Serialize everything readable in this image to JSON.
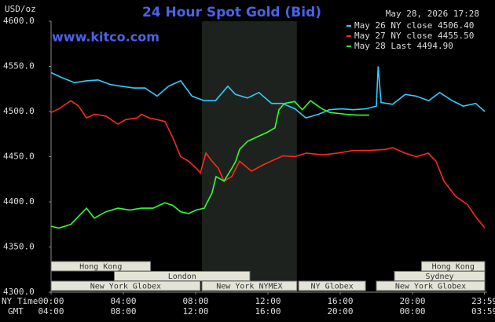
{
  "chart_data": {
    "type": "line",
    "title": "24 Hour Spot Gold (Bid)",
    "y_unit": "USD/oz",
    "timestamp": "May 28, 2026 17:28",
    "site": "www.kitco.com",
    "x_axis_labels": [
      "NY Time",
      "GMT"
    ],
    "xlim": [
      0,
      24
    ],
    "xticks": [
      {
        "value": 0,
        "label": "00:00"
      },
      {
        "value": 4,
        "label": "04:00"
      },
      {
        "value": 8,
        "label": "08:00"
      },
      {
        "value": 12,
        "label": "12:00"
      },
      {
        "value": 16,
        "label": "16:00"
      },
      {
        "value": 20,
        "label": "20:00"
      },
      {
        "value": 23.98,
        "label": "23:59"
      }
    ],
    "gmt_ticks": [
      "04:00",
      "08:00",
      "12:00",
      "16:00",
      "20:00",
      "00:00",
      "03:59"
    ],
    "ylim": [
      4300,
      4600
    ],
    "yticks": [
      {
        "value": 4300,
        "label": "4300.0"
      },
      {
        "value": 4350,
        "label": "4350.0"
      },
      {
        "value": 4400,
        "label": "4400.0"
      },
      {
        "value": 4450,
        "label": "4450.0"
      },
      {
        "value": 4500,
        "label": "4500.0"
      },
      {
        "value": 4550,
        "label": "4550.0"
      },
      {
        "value": 4600,
        "label": "4600.0"
      }
    ],
    "sessions": [
      {
        "label": "Hong Kong",
        "start": 0,
        "end": 5.5,
        "row": 0
      },
      {
        "label": "Hong Kong",
        "start": 20.5,
        "end": 24,
        "row": 0
      },
      {
        "label": "London",
        "start": 3.5,
        "end": 11,
        "row": 1
      },
      {
        "label": "Sydney",
        "start": 19,
        "end": 24,
        "row": 1
      },
      {
        "label": "New York Globex",
        "start": 0,
        "end": 8.25,
        "row": 2
      },
      {
        "label": "New York NYMEX",
        "start": 8.35,
        "end": 13.6,
        "row": 2,
        "shaded": true
      },
      {
        "label": "NY Globex",
        "start": 13.7,
        "end": 17.4,
        "row": 2
      },
      {
        "label": "New York Globex",
        "start": 18,
        "end": 24,
        "row": 2
      }
    ],
    "series": [
      {
        "name": "May 26 NY close 4506.40",
        "color": "#33ccff",
        "x": [
          0,
          0.65,
          1.3,
          1.96,
          2.6,
          3.26,
          3.9,
          4.57,
          5.2,
          5.87,
          6.5,
          7.17,
          7.8,
          8.48,
          9.1,
          9.78,
          10.2,
          10.87,
          11.5,
          12.2,
          12.8,
          13.5,
          14.1,
          14.8,
          15.4,
          16.1,
          16.7,
          17.4,
          18.0,
          18.1,
          18.26,
          18.9,
          19.6,
          20.2,
          20.9,
          21.5,
          22.2,
          22.8,
          23.5,
          24
        ],
        "values": [
          4543,
          4537,
          4532,
          4534,
          4535,
          4530,
          4528,
          4526,
          4526,
          4517,
          4528,
          4534,
          4517,
          4512,
          4512,
          4528,
          4519,
          4515,
          4521,
          4509,
          4509,
          4503,
          4493,
          4497,
          4502,
          4503,
          4502,
          4503,
          4506,
          4550,
          4510,
          4508,
          4519,
          4517,
          4512,
          4521,
          4512,
          4506,
          4509,
          4500
        ]
      },
      {
        "name": "May 27 NY close 4455.50",
        "color": "#ff2a1a",
        "x": [
          0,
          0.43,
          1.09,
          1.52,
          1.96,
          2.39,
          3.04,
          3.7,
          4.13,
          4.78,
          5.0,
          5.43,
          5.87,
          6.3,
          6.74,
          7.17,
          7.61,
          8.04,
          8.26,
          8.57,
          8.91,
          9.26,
          9.57,
          10.0,
          10.43,
          11.09,
          11.74,
          12.17,
          12.83,
          13.48,
          14.13,
          15.0,
          15.87,
          16.74,
          17.61,
          18.48,
          18.91,
          19.57,
          20.22,
          20.87,
          21.3,
          21.74,
          22.39,
          23.04,
          23.48,
          24
        ],
        "values": [
          4499,
          4503,
          4512,
          4506,
          4493,
          4497,
          4495,
          4486,
          4491,
          4493,
          4497,
          4493,
          4491,
          4489,
          4471,
          4450,
          4445,
          4437,
          4432,
          4454,
          4445,
          4437,
          4423,
          4428,
          4445,
          4434,
          4441,
          4445,
          4451,
          4450,
          4454,
          4452,
          4454,
          4457,
          4457,
          4458,
          4460,
          4454,
          4450,
          4454,
          4445,
          4423,
          4406,
          4397,
          4384,
          4371
        ]
      },
      {
        "name": "May 28 Last 4494.90",
        "color": "#33ff33",
        "x": [
          0,
          0.43,
          1.09,
          1.52,
          1.96,
          2.39,
          3.04,
          3.7,
          4.35,
          5.0,
          5.65,
          6.3,
          6.74,
          7.17,
          7.61,
          8.04,
          8.48,
          8.91,
          9.13,
          9.57,
          10.0,
          10.22,
          10.43,
          10.87,
          11.3,
          11.96,
          12.39,
          12.61,
          12.91,
          13.48,
          13.91,
          14.35,
          15.0,
          15.43,
          16.3,
          16.96,
          17.61
        ],
        "values": [
          4373,
          4371,
          4375,
          4384,
          4393,
          4382,
          4389,
          4393,
          4391,
          4393,
          4393,
          4399,
          4396,
          4389,
          4387,
          4391,
          4393,
          4410,
          4428,
          4423,
          4437,
          4445,
          4458,
          4467,
          4471,
          4477,
          4482,
          4502,
          4509,
          4511,
          4502,
          4512,
          4503,
          4499,
          4497,
          4496,
          4496
        ]
      }
    ]
  }
}
